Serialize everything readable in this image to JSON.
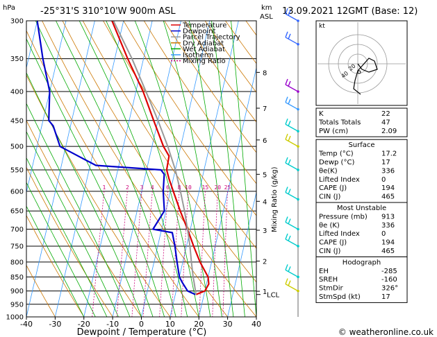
{
  "header": {
    "hpa_label": "hPa",
    "location": "-25°31'S  310°10'W  900m ASL",
    "km_label": "km",
    "asl_label": "ASL",
    "datetime": "13.09.2021  12GMT  (Base: 12)"
  },
  "legend": [
    {
      "label": "Temperature",
      "color": "#dd0000",
      "dash": ""
    },
    {
      "label": "Dewpoint",
      "color": "#0000cc",
      "dash": ""
    },
    {
      "label": "Parcel Trajectory",
      "color": "#999999",
      "dash": ""
    },
    {
      "label": "Dry Adiabat",
      "color": "#cc7700",
      "dash": ""
    },
    {
      "label": "Wet Adiabat",
      "color": "#00aa00",
      "dash": ""
    },
    {
      "label": "Isotherm",
      "color": "#3399ff",
      "dash": ""
    },
    {
      "label": "Mixing Ratio",
      "color": "#cc0077",
      "dash": "2,2"
    }
  ],
  "mixing_ratio_labels": [
    "1",
    "2",
    "3",
    "4",
    "6",
    "8",
    "10",
    "15",
    "20",
    "25"
  ],
  "mixing_ratio_axis_label": "Mixing Ratio (g/kg)",
  "lcl_label": "LCL",
  "xlabel": "Dewpoint / Temperature (°C)",
  "chart_data": {
    "type": "line",
    "title": "",
    "x_ticks": [
      -40,
      -30,
      -20,
      -10,
      0,
      10,
      20,
      30,
      40
    ],
    "pressure_levels": [
      300,
      350,
      400,
      450,
      500,
      550,
      600,
      650,
      700,
      750,
      800,
      850,
      900,
      950,
      1000
    ],
    "ylim": [
      1000,
      300
    ],
    "xlim": [
      -40,
      40
    ],
    "km_ticks": [
      {
        "km": 1,
        "p": 901
      },
      {
        "km": 2,
        "p": 797
      },
      {
        "km": 3,
        "p": 703
      },
      {
        "km": 4,
        "p": 625
      },
      {
        "km": 5,
        "p": 560
      },
      {
        "km": 6,
        "p": 487
      },
      {
        "km": 7,
        "p": 428
      },
      {
        "km": 8,
        "p": 370
      }
    ],
    "series": [
      {
        "name": "Temperature",
        "color": "#dd0000",
        "points": [
          [
            913,
            17.2
          ],
          [
            900,
            20.0
          ],
          [
            875,
            20.8
          ],
          [
            850,
            20.0
          ],
          [
            800,
            16.0
          ],
          [
            750,
            12.5
          ],
          [
            700,
            9.0
          ],
          [
            650,
            5.0
          ],
          [
            600,
            1.0
          ],
          [
            570,
            -1.5
          ],
          [
            550,
            -3.0
          ],
          [
            520,
            -3.3
          ],
          [
            500,
            -6.0
          ],
          [
            450,
            -11.5
          ],
          [
            400,
            -17.5
          ],
          [
            350,
            -25.5
          ],
          [
            300,
            -34.0
          ]
        ]
      },
      {
        "name": "Dewpoint",
        "color": "#0000cc",
        "points": [
          [
            913,
            17.0
          ],
          [
            900,
            14.0
          ],
          [
            870,
            11.5
          ],
          [
            850,
            10.0
          ],
          [
            800,
            8.0
          ],
          [
            750,
            6.0
          ],
          [
            710,
            4.0
          ],
          [
            700,
            -3.0
          ],
          [
            650,
            -0.5
          ],
          [
            600,
            -2.5
          ],
          [
            560,
            -3.5
          ],
          [
            550,
            -5.0
          ],
          [
            540,
            -28.0
          ],
          [
            500,
            -42.0
          ],
          [
            460,
            -46.0
          ],
          [
            450,
            -48.0
          ],
          [
            400,
            -50.0
          ],
          [
            350,
            -55.0
          ],
          [
            300,
            -60.0
          ]
        ]
      },
      {
        "name": "Parcel Trajectory",
        "color": "#999999",
        "points": [
          [
            913,
            17.2
          ],
          [
            880,
            16.0
          ],
          [
            850,
            14.8
          ],
          [
            800,
            13.0
          ],
          [
            750,
            11.2
          ],
          [
            700,
            9.0
          ],
          [
            650,
            6.5
          ],
          [
            600,
            3.5
          ],
          [
            550,
            0.0
          ],
          [
            500,
            -4.5
          ],
          [
            450,
            -10.0
          ],
          [
            400,
            -16.5
          ],
          [
            350,
            -24.0
          ],
          [
            300,
            -33.5
          ]
        ]
      }
    ]
  },
  "wind_barbs": [
    {
      "p": 300,
      "color": "#3366ff"
    },
    {
      "p": 330,
      "color": "#3366ff"
    },
    {
      "p": 400,
      "color": "#9900cc"
    },
    {
      "p": 430,
      "color": "#3399ff"
    },
    {
      "p": 470,
      "color": "#00cccc"
    },
    {
      "p": 500,
      "color": "#cccc00"
    },
    {
      "p": 550,
      "color": "#00cccc"
    },
    {
      "p": 620,
      "color": "#00cccc"
    },
    {
      "p": 700,
      "color": "#00cccc"
    },
    {
      "p": 750,
      "color": "#00cccc"
    },
    {
      "p": 850,
      "color": "#00cccc"
    },
    {
      "p": 900,
      "color": "#cccc00"
    }
  ],
  "hodograph": {
    "kt_label": "kt",
    "ring_labels": [
      "20",
      "40"
    ],
    "points": [
      [
        0.0,
        0.0
      ],
      [
        3.0,
        -4.0
      ],
      [
        8.0,
        -6.0
      ],
      [
        14.0,
        -4.0
      ],
      [
        12.0,
        2.0
      ],
      [
        8.0,
        4.0
      ],
      [
        0.0,
        -5.0
      ],
      [
        -2.0,
        -12.0
      ],
      [
        -3.0,
        -18.0
      ],
      [
        2.0,
        -22.0
      ]
    ]
  },
  "indices": {
    "rows": [
      {
        "label": "K",
        "value": "22"
      },
      {
        "label": "Totals Totals",
        "value": "47"
      },
      {
        "label": "PW (cm)",
        "value": "2.09"
      }
    ]
  },
  "surface": {
    "title": "Surface",
    "rows": [
      {
        "label": "Temp (°C)",
        "value": "17.2"
      },
      {
        "label": "Dewp (°C)",
        "value": "17"
      },
      {
        "label": "θe(K)",
        "value": "336"
      },
      {
        "label": "Lifted Index",
        "value": "0"
      },
      {
        "label": "CAPE (J)",
        "value": "194"
      },
      {
        "label": "CIN (J)",
        "value": "465"
      }
    ]
  },
  "most_unstable": {
    "title": "Most Unstable",
    "rows": [
      {
        "label": "Pressure (mb)",
        "value": "913"
      },
      {
        "label": "θe (K)",
        "value": "336"
      },
      {
        "label": "Lifted Index",
        "value": "0"
      },
      {
        "label": "CAPE (J)",
        "value": "194"
      },
      {
        "label": "CIN (J)",
        "value": "465"
      }
    ]
  },
  "hodograph_table": {
    "title": "Hodograph",
    "rows": [
      {
        "label": "EH",
        "value": "-285"
      },
      {
        "label": "SREH",
        "value": "-160"
      },
      {
        "label": "StmDir",
        "value": "326°"
      },
      {
        "label": "StmSpd (kt)",
        "value": "17"
      }
    ]
  },
  "copyright": "© weatheronline.co.uk"
}
